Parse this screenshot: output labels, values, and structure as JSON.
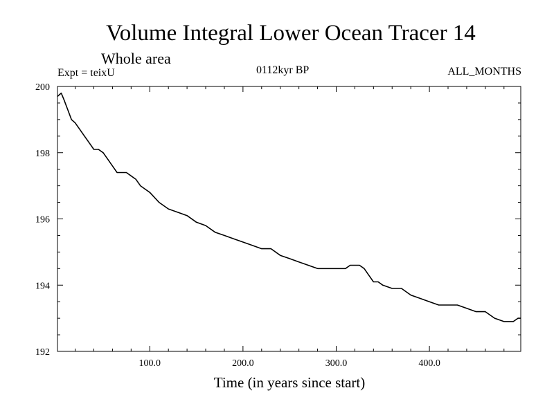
{
  "chart_data": {
    "type": "line",
    "title": "Volume Integral Lower Ocean Tracer 14",
    "subtitle": "Whole area",
    "expt_label": "Expt = teixU",
    "period_label": "0112kyr BP",
    "months_label": "ALL_MONTHS",
    "xlabel": "Time (in years since start)",
    "ylabel": "",
    "xlim": [
      1,
      498
    ],
    "ylim": [
      192,
      200
    ],
    "x_ticks": [
      100,
      200,
      300,
      400
    ],
    "x_tick_labels": [
      "100.0",
      "200.0",
      "300.0",
      "400.0"
    ],
    "y_ticks": [
      192,
      194,
      196,
      198,
      200
    ],
    "y_tick_labels": [
      "192",
      "194",
      "196",
      "198",
      "200"
    ],
    "grid": false,
    "series": [
      {
        "name": "teixU",
        "x": [
          1,
          5,
          8,
          12,
          16,
          20,
          25,
          30,
          35,
          40,
          45,
          50,
          55,
          60,
          65,
          70,
          75,
          80,
          85,
          90,
          95,
          100,
          110,
          120,
          130,
          140,
          150,
          160,
          170,
          180,
          190,
          200,
          210,
          220,
          230,
          240,
          250,
          260,
          270,
          280,
          290,
          300,
          305,
          310,
          315,
          320,
          325,
          330,
          335,
          340,
          345,
          350,
          360,
          370,
          380,
          390,
          400,
          410,
          420,
          430,
          440,
          450,
          460,
          470,
          480,
          485,
          490,
          495,
          498
        ],
        "y": [
          199.7,
          199.8,
          199.6,
          199.3,
          199.0,
          198.9,
          198.7,
          198.5,
          198.3,
          198.1,
          198.1,
          198.0,
          197.8,
          197.6,
          197.4,
          197.4,
          197.4,
          197.3,
          197.2,
          197.0,
          196.9,
          196.8,
          196.5,
          196.3,
          196.2,
          196.1,
          195.9,
          195.8,
          195.6,
          195.5,
          195.4,
          195.3,
          195.2,
          195.1,
          195.1,
          194.9,
          194.8,
          194.7,
          194.6,
          194.5,
          194.5,
          194.5,
          194.5,
          194.5,
          194.6,
          194.6,
          194.6,
          194.5,
          194.3,
          194.1,
          194.1,
          194.0,
          193.9,
          193.9,
          193.7,
          193.6,
          193.5,
          193.4,
          193.4,
          193.4,
          193.3,
          193.2,
          193.2,
          193.0,
          192.9,
          192.9,
          192.9,
          193.0,
          193.0
        ]
      }
    ]
  }
}
